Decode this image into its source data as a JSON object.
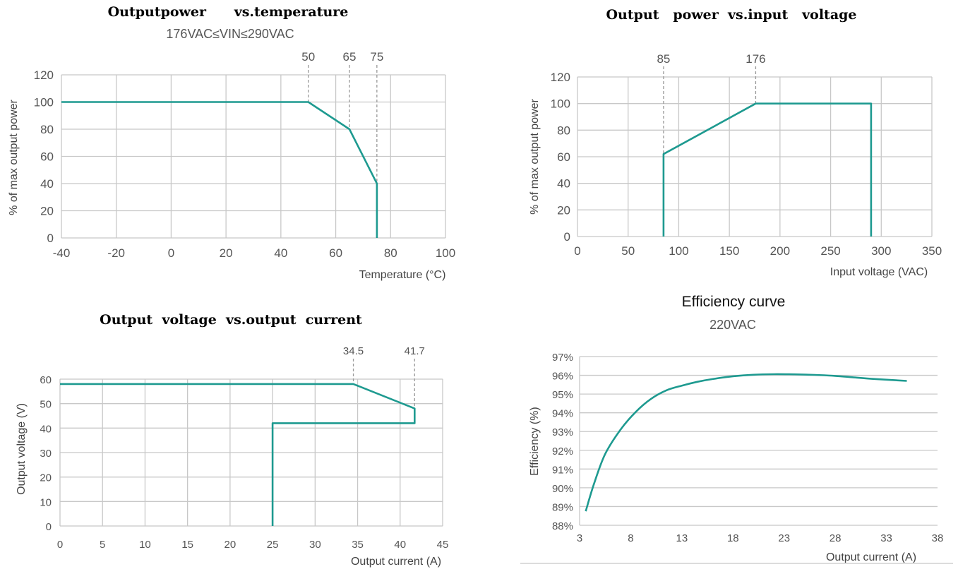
{
  "chart_data": [
    {
      "id": "c1",
      "type": "line",
      "title": "Outputpower      vs.temperature",
      "subtitle": "176VAC≤VIN≤290VAC",
      "xlabel": "Temperature (°C)",
      "ylabel": "% of max output power",
      "xlim": [
        -40,
        100
      ],
      "ylim": [
        0,
        120
      ],
      "x_ticks": [
        -40,
        -20,
        0,
        20,
        40,
        60,
        80,
        100
      ],
      "y_ticks": [
        0,
        20,
        40,
        60,
        80,
        100,
        120
      ],
      "x_tick_labels": [
        "-40",
        "-20",
        "0",
        "20",
        "40",
        "60",
        "80",
        "100"
      ],
      "y_tick_labels": [
        "0",
        "20",
        "40",
        "60",
        "80",
        "100",
        "120"
      ],
      "markers": [
        50,
        65,
        75
      ],
      "marker_labels": [
        "50",
        "65",
        "75"
      ],
      "marker_y": [
        100,
        80,
        40
      ],
      "grid": true,
      "series": [
        {
          "x": [
            -40,
            50,
            65,
            75,
            75
          ],
          "y": [
            100,
            100,
            80,
            40,
            0
          ],
          "color": "#1e9a90"
        }
      ]
    },
    {
      "id": "c2",
      "type": "line",
      "title": "Output   power  vs.input   voltage",
      "xlabel": "Input voltage (VAC)",
      "ylabel": "% of max output power",
      "xlim": [
        0,
        350
      ],
      "ylim": [
        0,
        120
      ],
      "x_ticks": [
        0,
        50,
        100,
        150,
        200,
        250,
        300,
        350
      ],
      "y_ticks": [
        0,
        20,
        40,
        60,
        80,
        100,
        120
      ],
      "x_tick_labels": [
        "0",
        "50",
        "100",
        "150",
        "200",
        "250",
        "300",
        "350"
      ],
      "y_tick_labels": [
        "0",
        "20",
        "40",
        "60",
        "80",
        "100",
        "120"
      ],
      "markers": [
        85,
        176
      ],
      "marker_labels": [
        "85",
        "176"
      ],
      "marker_y": [
        62,
        100
      ],
      "grid": true,
      "series": [
        {
          "x": [
            85,
            85,
            176,
            290,
            290
          ],
          "y": [
            0,
            62,
            100,
            100,
            0
          ],
          "color": "#1e9a90"
        }
      ]
    },
    {
      "id": "c3",
      "type": "line",
      "title": "Output  voltage  vs.output  current",
      "xlabel": "Output current (A)",
      "ylabel": "Output voltage (V)",
      "xlim": [
        0,
        45
      ],
      "ylim": [
        0,
        60
      ],
      "x_ticks": [
        0,
        5,
        10,
        15,
        20,
        25,
        30,
        35,
        40,
        45
      ],
      "y_ticks": [
        0,
        10,
        20,
        30,
        40,
        50,
        60
      ],
      "x_tick_labels": [
        "0",
        "5",
        "10",
        "15",
        "20",
        "25",
        "30",
        "35",
        "40",
        "45"
      ],
      "y_tick_labels": [
        "0",
        "10",
        "20",
        "30",
        "40",
        "50",
        "60"
      ],
      "markers": [
        34.5,
        41.7
      ],
      "marker_labels": [
        "34.5",
        "41.7"
      ],
      "marker_y": [
        58,
        48
      ],
      "grid": true,
      "series": [
        {
          "x": [
            0,
            34.5,
            41.7,
            41.7,
            25,
            25
          ],
          "y": [
            58,
            58,
            48,
            42,
            42,
            0
          ],
          "color": "#1e9a90"
        }
      ]
    },
    {
      "id": "c4",
      "type": "line",
      "title": "Efficiency curve",
      "subtitle": "220VAC",
      "xlabel": "Output current (A)",
      "ylabel": "Efficiency (%)",
      "xlim": [
        3,
        38
      ],
      "ylim": [
        88,
        97
      ],
      "x_ticks": [
        3,
        8,
        13,
        18,
        23,
        28,
        33,
        38
      ],
      "y_ticks": [
        88,
        89,
        90,
        91,
        92,
        93,
        94,
        95,
        96,
        97
      ],
      "x_tick_labels": [
        "3",
        "8",
        "13",
        "18",
        "23",
        "28",
        "33",
        "38"
      ],
      "y_tick_labels": [
        "88%",
        "89%",
        "90%",
        "91%",
        "92%",
        "93%",
        "94%",
        "95%",
        "96%",
        "97%"
      ],
      "markers": [],
      "marker_labels": [],
      "grid": true,
      "series": [
        {
          "x": [
            3.6,
            4.4,
            5.5,
            7.0,
            8.5,
            10.0,
            11.5,
            13.0,
            14.5,
            16.0,
            18.0,
            20.0,
            22.0,
            24.0,
            26.0,
            28.0,
            30.0,
            32.0,
            35.0
          ],
          "y": [
            88.75,
            90.2,
            91.8,
            93.1,
            94.05,
            94.75,
            95.2,
            95.45,
            95.65,
            95.8,
            95.95,
            96.03,
            96.06,
            96.05,
            96.02,
            95.97,
            95.88,
            95.8,
            95.7
          ],
          "color": "#1e9a90"
        }
      ]
    }
  ]
}
